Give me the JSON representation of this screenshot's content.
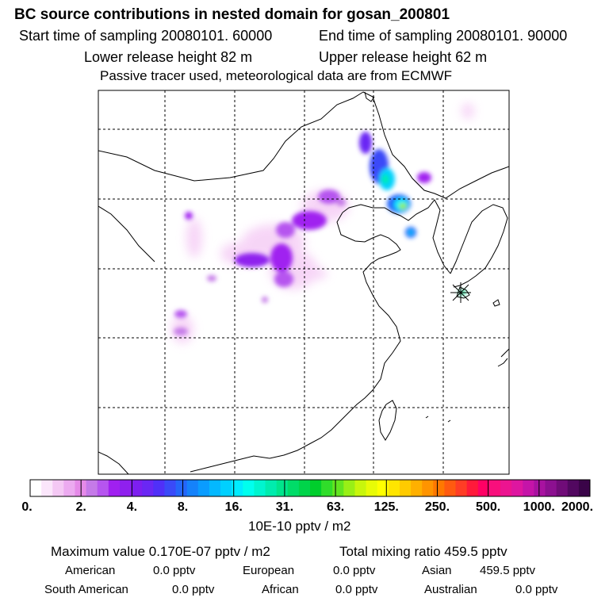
{
  "header": {
    "title": "BC  source contributions in nested domain for gosan_200801",
    "start_time": "Start time of sampling 20080101. 60000",
    "end_time": "End time of sampling 20080101. 90000",
    "lower_release": "Lower release height   82 m",
    "upper_release": "Upper release height   62 m",
    "passive_note": "Passive tracer used, meteorological data are from ECMWF"
  },
  "colorbar": {
    "tick_labels": [
      "0.",
      "2.",
      "4.",
      "8.",
      "16.",
      "31.",
      "63.",
      "125.",
      "250.",
      "500.",
      "1000.",
      "2000."
    ],
    "colors": [
      "#ffffff",
      "#fbe6fb",
      "#f4c8f4",
      "#ecaaf0",
      "#e58ae8",
      "#c57ae8",
      "#b655ef",
      "#a020f0",
      "#8f20ee",
      "#7d1ff0",
      "#6a27f4",
      "#5030f8",
      "#3a4af8",
      "#2466fa",
      "#1582fa",
      "#0a9cff",
      "#04b8ff",
      "#00d0ff",
      "#00ecff",
      "#00ffee",
      "#00f5cf",
      "#00ecae",
      "#00e58c",
      "#00dc68",
      "#00d44a",
      "#00ce2c",
      "#30dd2a",
      "#62e520",
      "#99ef16",
      "#c8f60c",
      "#e8fb06",
      "#ffff00",
      "#ffe500",
      "#ffcb00",
      "#ffb000",
      "#ff9400",
      "#ff7800",
      "#ff5a10",
      "#ff3d25",
      "#ff1a3a",
      "#ff0064",
      "#f80f7c",
      "#ec1490",
      "#de16a0",
      "#c514a8",
      "#a812a0",
      "#8c1090",
      "#700c78",
      "#520860",
      "#3a0448"
    ],
    "unit": "10E-10 pptv / m2"
  },
  "summary": {
    "max_value": "Maximum value  0.170E-07 pptv / m2",
    "total_mixing": "Total mixing ratio      459.5 pptv",
    "rows": [
      [
        {
          "label": "American",
          "value": "0.0 pptv"
        },
        {
          "label": "European",
          "value": "0.0 pptv"
        },
        {
          "label": "Asian",
          "value": "459.5 pptv"
        }
      ],
      [
        {
          "label": "South American",
          "value": "0.0 pptv"
        },
        {
          "label": "African",
          "value": "0.0 pptv"
        },
        {
          "label": "Australian",
          "value": "0.0 pptv"
        }
      ]
    ]
  },
  "map": {
    "receptor_marker": "gosan-receptor-star"
  }
}
